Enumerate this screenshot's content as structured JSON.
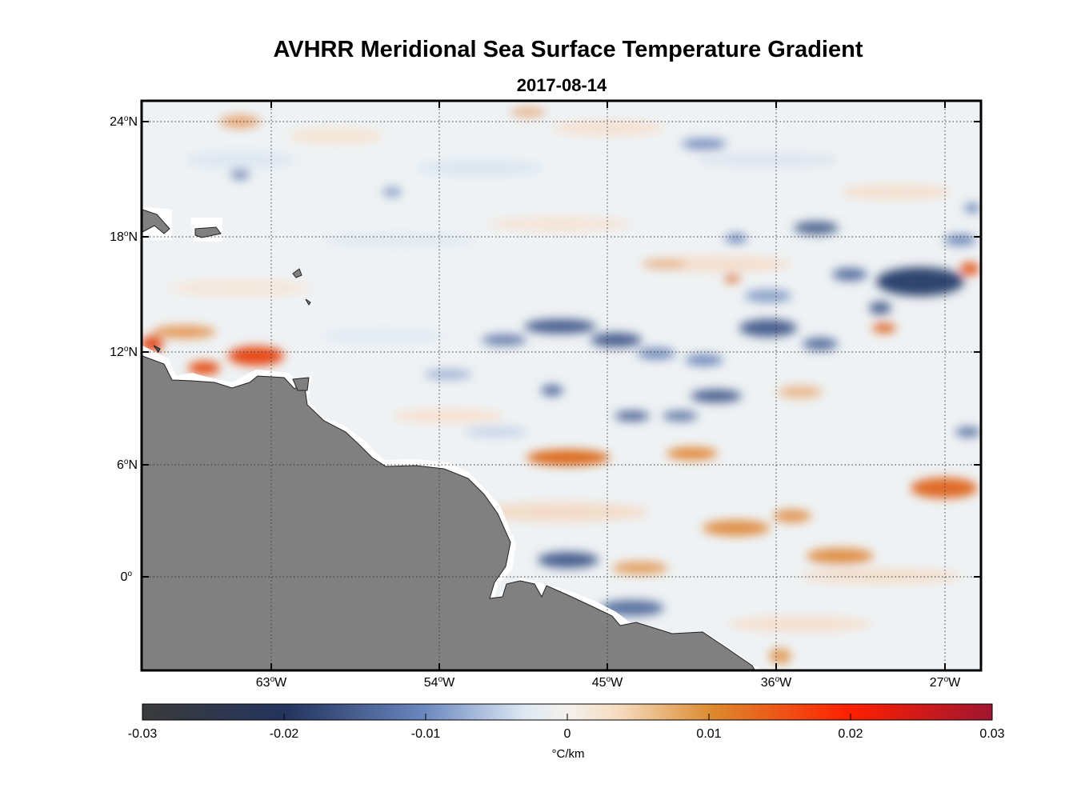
{
  "title": "AVHRR Meridional Sea Surface Temperature Gradient",
  "subtitle": "2017-08-14",
  "lat_labels": [
    "24",
    "18",
    "12",
    "6",
    "0"
  ],
  "lat_suffix": [
    "N",
    "N",
    "N",
    "N",
    ""
  ],
  "lon_labels": [
    "63",
    "54",
    "45",
    "36",
    "27"
  ],
  "lon_suffix": "W",
  "degree_symbol": "o",
  "colorbar": {
    "ticks": [
      "-0.03",
      "-0.02",
      "-0.01",
      "0",
      "0.01",
      "0.02",
      "0.03"
    ],
    "unit_label": "°C/km",
    "colors": [
      "#3a3a3a",
      "#23345e",
      "#6a86bf",
      "#f4f1ec",
      "#dc8a2e",
      "#ff2000",
      "#a01530"
    ]
  },
  "land_color": "#808080",
  "ocean_color": "#eef2f4"
}
